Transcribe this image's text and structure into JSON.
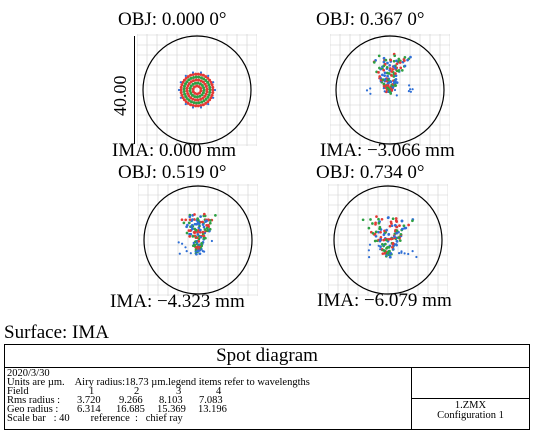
{
  "panels": [
    {
      "obj": "OBJ: 0.000 0°",
      "ima": "IMA: 0.000 mm"
    },
    {
      "obj": "OBJ: 0.367 0°",
      "ima": "IMA: −3.066 mm"
    },
    {
      "obj": "OBJ: 0.519 0°",
      "ima": "IMA: −4.323 mm"
    },
    {
      "obj": "OBJ: 0.734 0°",
      "ima": "IMA: −6.079 mm"
    }
  ],
  "scale_label": "40.00",
  "surface": "Surface: IMA",
  "footer": {
    "title": "Spot diagram",
    "date": "2020/3/30",
    "units_line": "Units are µm.    Airy radius:18.73 µm.legend items refer to wavelengths",
    "field_label": "Field",
    "field_values": [
      "1",
      "2",
      "3",
      "4"
    ],
    "rms_label": "Rms radius :",
    "rms_values": [
      "3.720",
      "9.266",
      "8.103",
      "7.083"
    ],
    "geo_label": "Geo radius :",
    "geo_values": [
      "6.314",
      "16.685",
      "15.369",
      "13.196"
    ],
    "scale_line": "Scale bar   : 40        reference  :   chief ray",
    "file": "1.ZMX",
    "configuration": "Configuration 1"
  },
  "colors": {
    "wl1": "#2f6fd6",
    "wl2": "#2ea043",
    "wl3": "#e53935",
    "circle": "#000000",
    "grid": "#cfcfcf"
  }
}
